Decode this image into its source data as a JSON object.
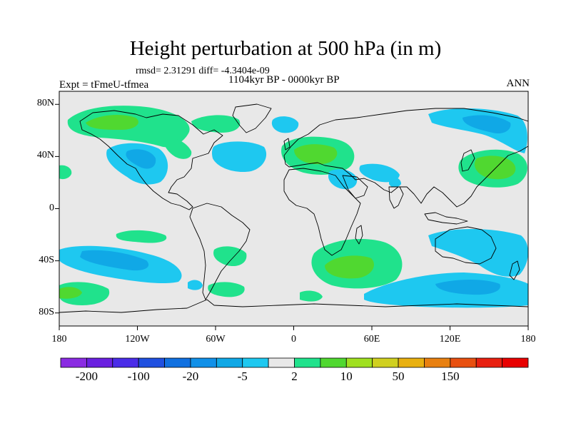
{
  "title": "Height perturbation at 500 hPa (in m)",
  "rmsd_line": "rmsd= 2.31291 diff= -4.3404e-09",
  "period": "1104kyr BP - 0000kyr BP",
  "experiment": "Expt = tFmeU-tfmea",
  "season": "ANN",
  "colors": {
    "background_map": "#e8e8e8",
    "neg_light": "#1ec8f0",
    "neg_mid": "#10a8e6",
    "pos_light": "#20e28c",
    "pos_mid": "#50d830",
    "coast": "#000000"
  },
  "map": {
    "lat_ticks": [
      {
        "value": 80,
        "label": "80N"
      },
      {
        "value": 40,
        "label": "40N"
      },
      {
        "value": 0,
        "label": "0"
      },
      {
        "value": -40,
        "label": "40S"
      },
      {
        "value": -80,
        "label": "80S"
      }
    ],
    "lon_ticks": [
      {
        "value": -180,
        "label": "180"
      },
      {
        "value": -120,
        "label": "120W"
      },
      {
        "value": -60,
        "label": "60W"
      },
      {
        "value": 0,
        "label": "0"
      },
      {
        "value": 60,
        "label": "60E"
      },
      {
        "value": 120,
        "label": "120E"
      },
      {
        "value": 180,
        "label": "180"
      }
    ],
    "lon_range": [
      -180,
      180
    ],
    "lat_range": [
      -90,
      90
    ]
  },
  "colorbar": {
    "colors": [
      "#8a2be2",
      "#6a20e0",
      "#4a2ce8",
      "#2050e0",
      "#1070e0",
      "#1090e8",
      "#10a8e6",
      "#1ec8f0",
      "#e8e8e8",
      "#20e28c",
      "#50d830",
      "#a0e020",
      "#d0d020",
      "#e8b010",
      "#e88010",
      "#e85010",
      "#e82010",
      "#e80000"
    ],
    "labels": [
      {
        "boundary": 1,
        "text": "-200"
      },
      {
        "boundary": 3,
        "text": "-100"
      },
      {
        "boundary": 5,
        "text": "-20"
      },
      {
        "boundary": 7,
        "text": "-5"
      },
      {
        "boundary": 9,
        "text": "2"
      },
      {
        "boundary": 11,
        "text": "10"
      },
      {
        "boundary": 13,
        "text": "50"
      },
      {
        "boundary": 15,
        "text": "150"
      }
    ]
  }
}
